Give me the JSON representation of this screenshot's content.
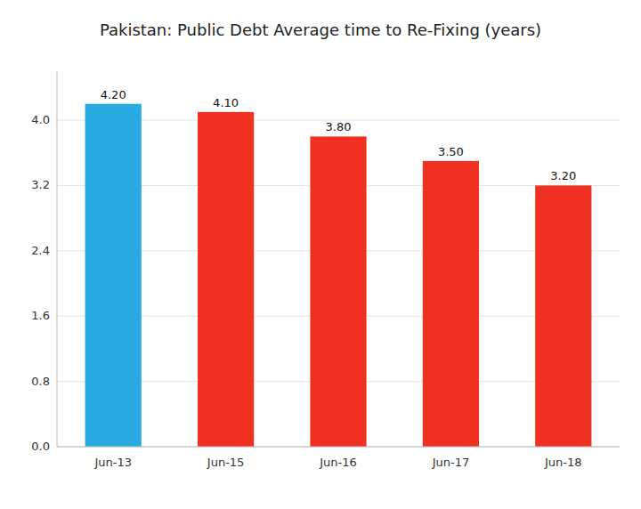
{
  "chart_data": {
    "type": "bar",
    "title": "Pakistan: Public Debt Average time to Re-Fixing (years)",
    "categories": [
      "Jun-13",
      "Jun-15",
      "Jun-16",
      "Jun-17",
      "Jun-18"
    ],
    "values": [
      4.2,
      4.1,
      3.8,
      3.5,
      3.2
    ],
    "value_labels": [
      "4.20",
      "4.10",
      "3.80",
      "3.50",
      "3.20"
    ],
    "colors": [
      "#29ABE2",
      "#F03020",
      "#F03020",
      "#F03020",
      "#F03020"
    ],
    "ylim": [
      0,
      4.6
    ],
    "yticks": [
      {
        "value": 0,
        "label": "0.0"
      },
      0.8,
      1.6,
      2.4,
      3.2,
      {
        "value": 4.0,
        "label": "4.0"
      }
    ],
    "grid": true,
    "data_labels": true
  }
}
